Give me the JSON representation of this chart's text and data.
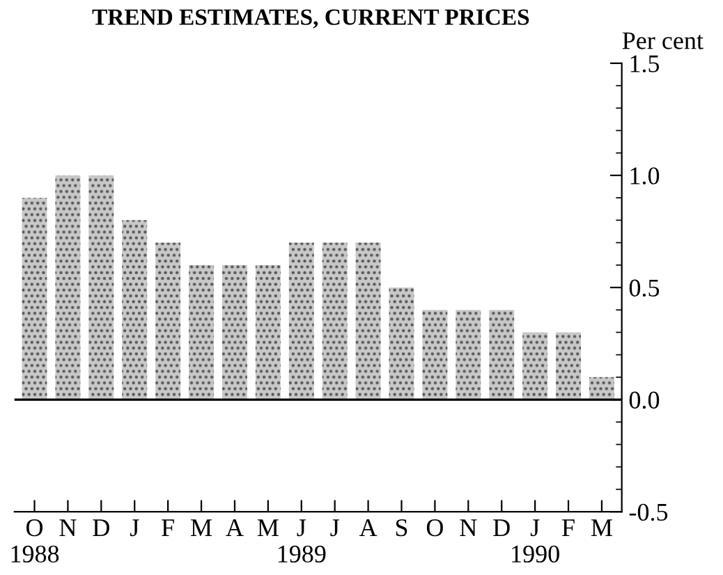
{
  "chart_data": {
    "type": "bar",
    "title": "TREND ESTIMATES, CURRENT PRICES",
    "ylabel": "Per cent",
    "categories": [
      "O\n1988",
      "N",
      "D",
      "J",
      "F",
      "M",
      "A",
      "M",
      "J\n1989",
      "J",
      "A",
      "S",
      "O",
      "N",
      "D",
      "J\n1990",
      "F",
      "M"
    ],
    "values": [
      0.9,
      1.0,
      1.0,
      0.8,
      0.7,
      0.6,
      0.6,
      0.6,
      0.7,
      0.7,
      0.7,
      0.5,
      0.4,
      0.4,
      0.4,
      0.3,
      0.3,
      0.1
    ],
    "color": "#c8c8c8",
    "ylim": [
      -0.5,
      1.5
    ],
    "yticks": [
      {
        "value": -0.5,
        "label": "-0.5"
      },
      {
        "value": 0,
        "label": "0.0"
      },
      0.5,
      {
        "value": 1,
        "label": "1.0"
      },
      1.5
    ],
    "ref_lines": [
      {
        "axis": "y",
        "value": 0,
        "color": "#000000"
      }
    ],
    "grid": false,
    "legend": false
  }
}
